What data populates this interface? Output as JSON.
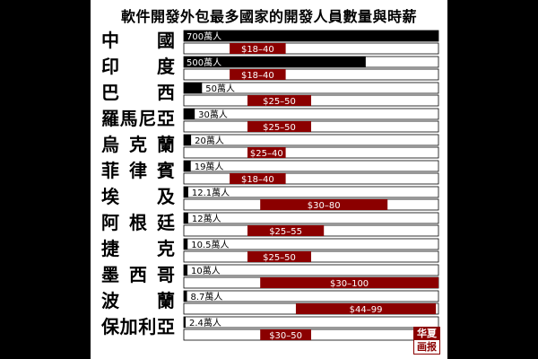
{
  "chart_data": {
    "type": "bar",
    "title": "軟件開發外包最多國家的開發人員數量與時薪",
    "categories": [
      "中　國",
      "印　度",
      "巴　西",
      "羅馬尼亞",
      "烏克蘭",
      "菲律賓",
      "埃　及",
      "阿根廷",
      "捷　克",
      "墨西哥",
      "波　蘭",
      "保加利亞"
    ],
    "series": [
      {
        "values": [
          700,
          500,
          50,
          30,
          20,
          19,
          12.1,
          12,
          10.5,
          10,
          8.7,
          2.4
        ],
        "labels": [
          "700萬人",
          "500萬人",
          "50萬人",
          "30萬人",
          "20萬人",
          "19萬人",
          "12.1萬人",
          "12萬人",
          "10.5萬人",
          "10萬人",
          "8.7萬人",
          "2.4萬人"
        ],
        "color": "#000000"
      },
      {
        "ranges": [
          [
            18,
            40
          ],
          [
            18,
            40
          ],
          [
            25,
            50
          ],
          [
            25,
            50
          ],
          [
            25,
            40
          ],
          [
            18,
            40
          ],
          [
            30,
            80
          ],
          [
            25,
            55
          ],
          [
            25,
            50
          ],
          [
            30,
            100
          ],
          [
            44,
            99
          ],
          [
            30,
            50
          ]
        ],
        "labels": [
          "$18–40",
          "$18–40",
          "$25–50",
          "$25–50",
          "$25–40",
          "$18–40",
          "$30–80",
          "$25–55",
          "$25–50",
          "$30–100",
          "$44–99",
          "$30–50"
        ],
        "color": "#8b0000"
      }
    ]
  },
  "logo": {
    "line1": "华夏",
    "line2": "画报"
  }
}
